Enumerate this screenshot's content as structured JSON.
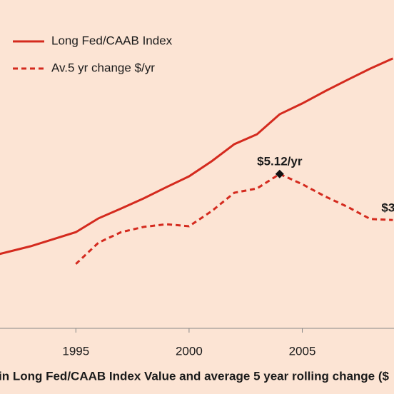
{
  "chart_data": {
    "type": "line",
    "x_label": "in Long Fed/CAAB Index Value and average 5 year rolling change ($",
    "xlim": [
      1991.65,
      2009.05
    ],
    "xticks": [
      1995,
      2000,
      2005
    ],
    "ylim": [
      0,
      100
    ],
    "legend": "top-left",
    "series": [
      {
        "name": "Long Fed/CAAB Index",
        "color": "#d42a1e",
        "dash": false,
        "x": [
          1991.6,
          1993,
          1995,
          1996,
          1997,
          1998,
          1999,
          2000,
          2001,
          2002,
          2003,
          2004,
          2005,
          2006,
          2007,
          2008,
          2009
        ],
        "values": [
          22.6,
          25.0,
          29.3,
          33.5,
          36.5,
          39.6,
          43.0,
          46.3,
          50.9,
          56.1,
          59.1,
          65.2,
          68.5,
          72.2,
          75.7,
          79.1,
          82.2
        ]
      },
      {
        "name": "Av.5 yr change $/yr",
        "color": "#d42a1e",
        "dash": true,
        "x": [
          1995,
          1996,
          1997,
          1998,
          1999,
          2000,
          2001,
          2002,
          2003,
          2004,
          2005,
          2006,
          2007,
          2008,
          2009
        ],
        "values": [
          19.6,
          26.1,
          29.3,
          30.9,
          31.7,
          31.1,
          35.7,
          41.3,
          42.6,
          47.0,
          43.9,
          40.2,
          37.0,
          33.3,
          33.0
        ]
      }
    ],
    "annotations": [
      {
        "text": "$5.12/yr",
        "series": 1,
        "index": 9,
        "marker": true
      },
      {
        "text": "$3",
        "series": 1,
        "index": 14,
        "marker": false
      }
    ]
  }
}
